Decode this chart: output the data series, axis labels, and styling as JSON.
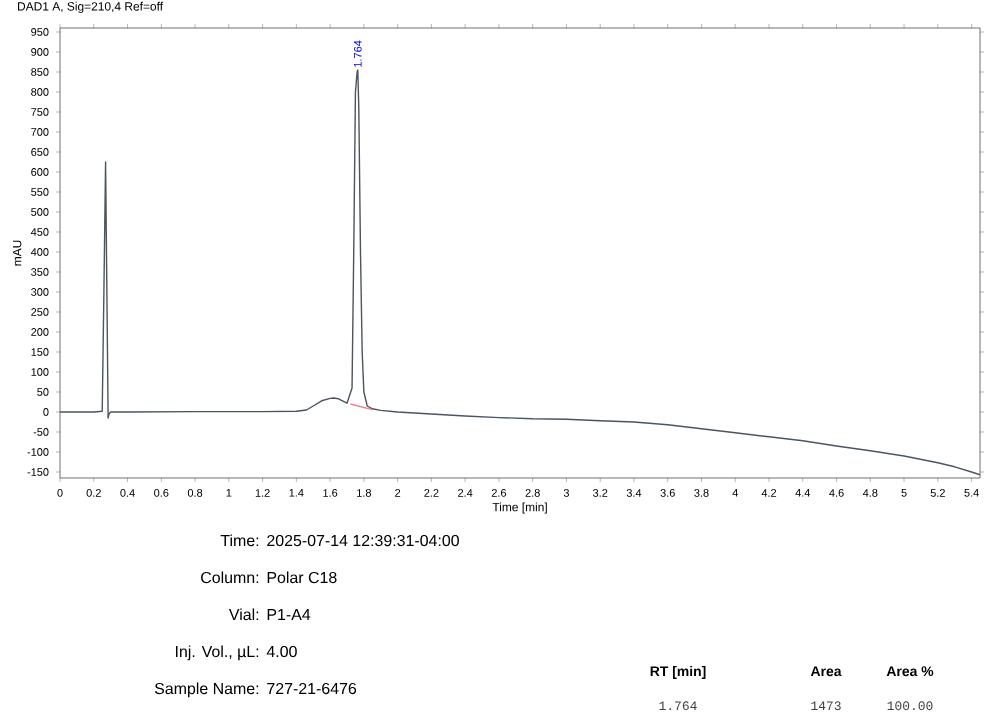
{
  "chart_data": {
    "type": "line",
    "title": "DAD1 A, Sig=210,4 Ref=off",
    "xlabel": "Time [min]",
    "ylabel": "mAU",
    "xlim": [
      0,
      5.45
    ],
    "ylim": [
      -165,
      960
    ],
    "xticks": [
      0,
      0.2,
      0.4,
      0.6,
      0.8,
      1,
      1.2,
      1.4,
      1.6,
      1.8,
      2,
      2.2,
      2.4,
      2.6,
      2.8,
      3,
      3.2,
      3.4,
      3.6,
      3.8,
      4,
      4.2,
      4.4,
      4.6,
      4.8,
      5,
      5.2,
      5.4
    ],
    "yticks": [
      -150,
      -100,
      -50,
      0,
      50,
      100,
      150,
      200,
      250,
      300,
      350,
      400,
      450,
      500,
      550,
      600,
      650,
      700,
      750,
      800,
      850,
      900,
      950
    ],
    "grid": false,
    "marker": "none",
    "line_style": "solid",
    "series": [
      {
        "color": "#4a5560",
        "x": [
          0,
          0.2,
          0.25,
          0.26,
          0.27,
          0.28,
          0.285,
          0.29,
          0.3,
          0.4,
          0.8,
          1.2,
          1.4,
          1.46,
          1.5,
          1.55,
          1.6,
          1.62,
          1.65,
          1.7,
          1.73,
          1.74,
          1.75,
          1.76,
          1.764,
          1.77,
          1.78,
          1.79,
          1.8,
          1.82,
          1.85,
          1.9,
          2.0,
          2.2,
          2.4,
          2.6,
          2.8,
          3.0,
          3.2,
          3.4,
          3.6,
          3.8,
          4.0,
          4.2,
          4.4,
          4.6,
          4.8,
          5.0,
          5.2,
          5.3,
          5.4,
          5.45
        ],
        "values": [
          0,
          0,
          2,
          300,
          625,
          200,
          -15,
          -5,
          0,
          0,
          1,
          1,
          2,
          5,
          15,
          28,
          34,
          35,
          33,
          22,
          60,
          400,
          800,
          850,
          855,
          760,
          400,
          150,
          50,
          15,
          8,
          4,
          0,
          -5,
          -10,
          -14,
          -17,
          -18,
          -22,
          -25,
          -32,
          -42,
          -52,
          -62,
          -72,
          -85,
          -97,
          -110,
          -127,
          -137,
          -150,
          -157
        ]
      },
      {
        "color": "#f08080",
        "x": [
          1.72,
          1.85
        ],
        "values": [
          20,
          6
        ]
      }
    ],
    "annotations": [
      {
        "text": "1.764",
        "x": 1.764,
        "y": 855
      },
      "Time:",
      "2025-07-14 12:39:31-04:00",
      "Column:",
      "Polar C18",
      "Vial:",
      "P1-A4",
      "Inj. Vol., µL:",
      "4.00",
      "Sample Name:",
      "727-21-6476",
      "RT [min]",
      "Area",
      "Area %",
      "1.764",
      "1473",
      "100.00"
    ]
  }
}
